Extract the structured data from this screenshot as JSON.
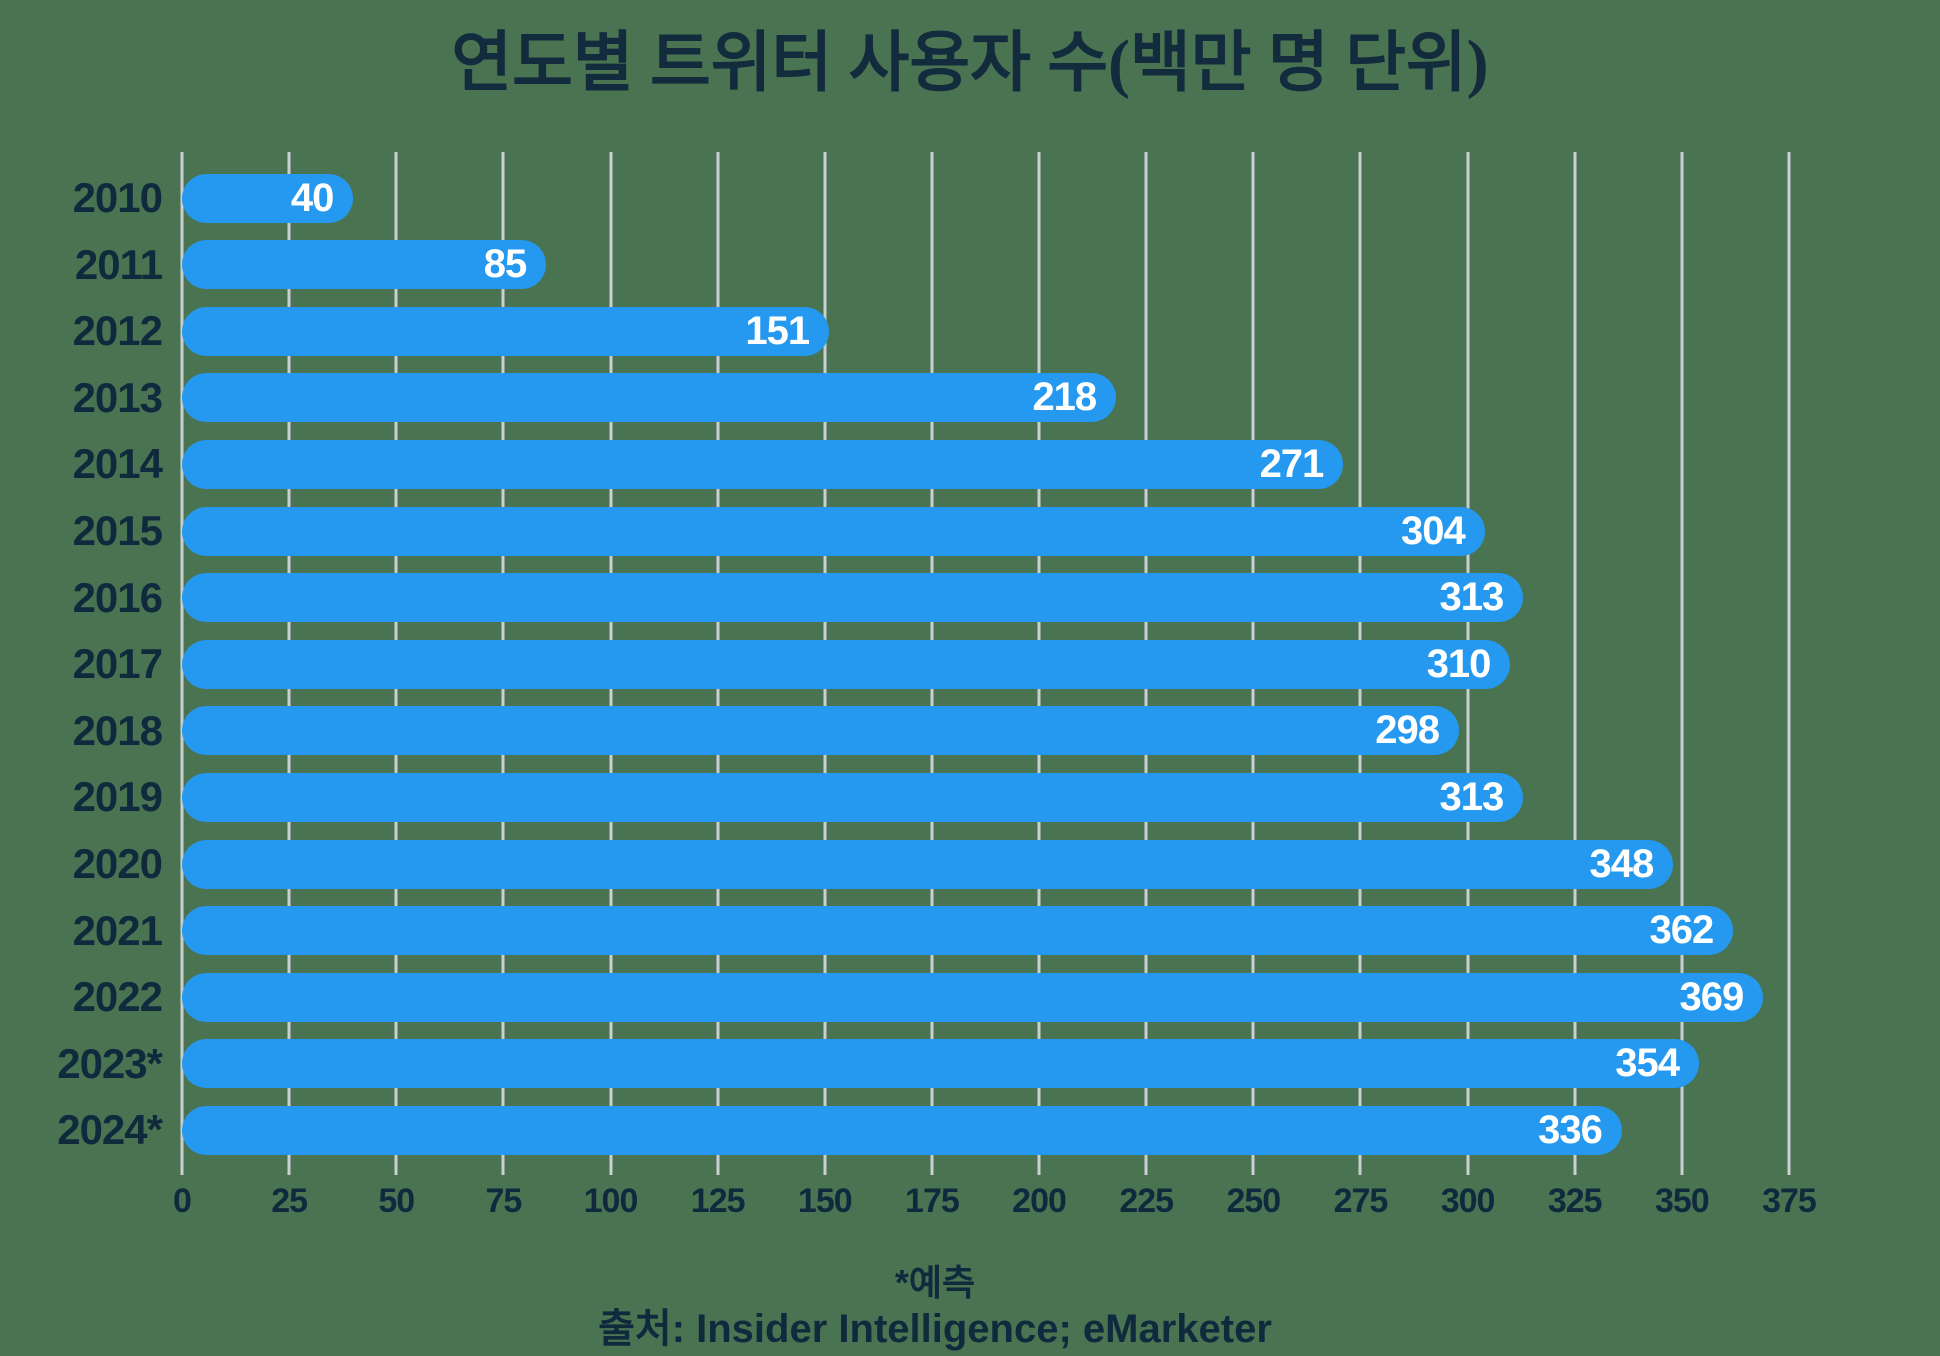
{
  "chart_data": {
    "type": "bar",
    "orientation": "horizontal",
    "title": "연도별 트위터 사용자 수(백만 명 단위)",
    "categories": [
      "2010",
      "2011",
      "2012",
      "2013",
      "2014",
      "2015",
      "2016",
      "2017",
      "2018",
      "2019",
      "2020",
      "2021",
      "2022",
      "2023*",
      "2024*"
    ],
    "values": [
      40,
      85,
      151,
      218,
      271,
      304,
      313,
      310,
      298,
      313,
      348,
      362,
      369,
      354,
      336
    ],
    "xlabel": "",
    "ylabel": "",
    "xlim": [
      0,
      375
    ],
    "x_ticks": [
      0,
      25,
      50,
      75,
      100,
      125,
      150,
      175,
      200,
      225,
      250,
      275,
      300,
      325,
      350,
      375
    ],
    "grid": true,
    "legend": "none",
    "footnote": "*예측",
    "source": "출처: Insider Intelligence; eMarketer",
    "colors": {
      "background": "#4A7352",
      "bar": "#2599F0",
      "bar_value_text": "#FFFFFF",
      "text": "#102A3D",
      "title_text": "#122B3D",
      "gridline": "#C9CFD2"
    }
  }
}
